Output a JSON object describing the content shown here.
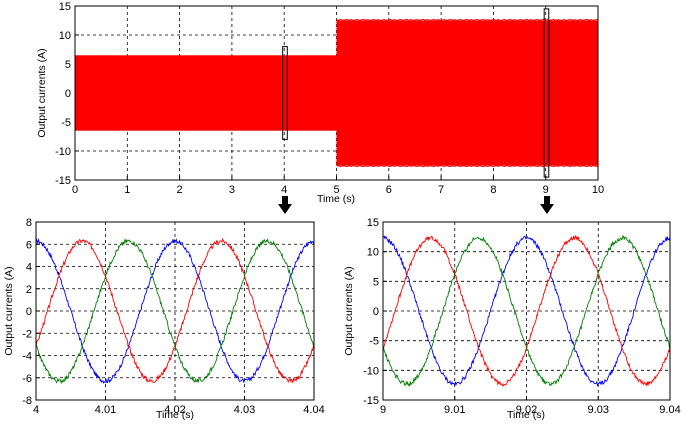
{
  "chart_data": [
    {
      "id": "top",
      "type": "area",
      "xlabel": "Time (s)",
      "ylabel": "Output currents (A)",
      "xlim": [
        0,
        10
      ],
      "ylim": [
        -15,
        15
      ],
      "xticks": [
        "0",
        "1",
        "2",
        "3",
        "4",
        "5",
        "6",
        "7",
        "8",
        "9",
        "10"
      ],
      "yticks": [
        "15",
        "10",
        "5",
        "0",
        "-5",
        "-10",
        "-15"
      ],
      "grid": true,
      "segments": [
        {
          "x_start": 0,
          "x_end": 5,
          "amplitude": 6.5
        },
        {
          "x_start": 5,
          "x_end": 10,
          "amplitude": 12.5
        }
      ],
      "fill_color": "#ff0000",
      "zoom_windows": [
        [
          3.99,
          4.04
        ],
        [
          8.99,
          9.04
        ]
      ]
    },
    {
      "id": "zoom1",
      "type": "line",
      "xlabel": "Time (s)",
      "ylabel": "Output currents (A)",
      "xlim": [
        4,
        4.04
      ],
      "ylim": [
        -8,
        8
      ],
      "xticks": [
        "4",
        "4.01",
        "4.02",
        "4.03",
        "4.04"
      ],
      "yticks": [
        "8",
        "6",
        "4",
        "2",
        "0",
        "-2",
        "-4",
        "-6",
        "-8"
      ],
      "grid": true,
      "frequency_hz": 50,
      "amplitude": 6.3,
      "series": [
        {
          "color": "#0000ff",
          "phase_deg": 90
        },
        {
          "color": "#ff0000",
          "phase_deg": -30
        },
        {
          "color": "#008000",
          "phase_deg": 210
        }
      ]
    },
    {
      "id": "zoom2",
      "type": "line",
      "xlabel": "Time (s)",
      "ylabel": "Output currents (A)",
      "xlim": [
        9,
        9.04
      ],
      "ylim": [
        -15,
        15
      ],
      "xticks": [
        "9",
        "9.01",
        "9.02",
        "9.03",
        "9.04"
      ],
      "yticks": [
        "15",
        "10",
        "5",
        "0",
        "-5",
        "-10",
        "-15"
      ],
      "grid": true,
      "frequency_hz": 50,
      "amplitude": 12.3,
      "series": [
        {
          "color": "#0000ff",
          "phase_deg": 90
        },
        {
          "color": "#ff0000",
          "phase_deg": -30
        },
        {
          "color": "#008000",
          "phase_deg": 210
        }
      ]
    }
  ],
  "arrows": {
    "color": "#000000",
    "count": 2
  }
}
